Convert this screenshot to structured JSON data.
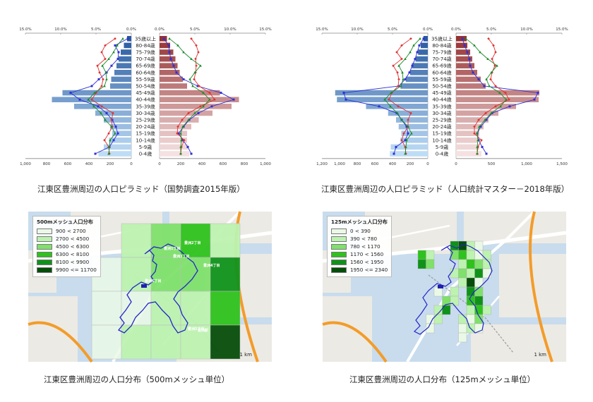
{
  "age_labels": [
    "35歳以上",
    "80-84歳",
    "75-79歳",
    "70-74歳",
    "65-69歳",
    "60-64歳",
    "55-59歳",
    "50-54歳",
    "45-49歳",
    "40-44歳",
    "35-39歳",
    "30-34歳",
    "25-29歳",
    "20-24歳",
    "15-19歳",
    "10-14歳",
    "5-9歳",
    "0-4歳"
  ],
  "chart_data": [
    {
      "type": "bar",
      "caption": "江東区豊洲周辺の人口ピラミッド（国勢調査2015年版）",
      "categories": [
        "35歳以上",
        "80-84歳",
        "75-79歳",
        "70-74歳",
        "65-69歳",
        "60-64歳",
        "55-59歳",
        "50-54歳",
        "45-49歳",
        "40-44歳",
        "35-39歳",
        "30-34歳",
        "25-29歳",
        "20-24歳",
        "15-19歳",
        "10-14歳",
        "5-9歳",
        "0-4歳"
      ],
      "left_count_ticks": [
        "1,000",
        "800",
        "600",
        "400",
        "200",
        "0"
      ],
      "right_count_ticks": [
        "0",
        "200",
        "400",
        "600",
        "800",
        "1,000"
      ],
      "count_max": 1000,
      "left_pct_ticks": [
        "15.0%",
        "10.0%",
        "5.0%",
        "0.0%"
      ],
      "right_pct_ticks": [
        "0.0%",
        "5.0%",
        "10.0%",
        "15.0%"
      ],
      "pct_max": 15,
      "series": [
        {
          "side": "left",
          "kind": "bars",
          "values": [
            40,
            70,
            100,
            120,
            140,
            160,
            190,
            200,
            650,
            750,
            540,
            340,
            260,
            200,
            180,
            210,
            260,
            310
          ]
        },
        {
          "side": "right",
          "kind": "bars",
          "values": [
            70,
            100,
            130,
            150,
            170,
            190,
            220,
            260,
            570,
            750,
            680,
            500,
            370,
            300,
            260,
            260,
            270,
            280
          ]
        },
        {
          "side": "left",
          "kind": "line",
          "color": "#2f2fd6",
          "values": [
            0.5,
            2.3,
            1.8,
            1.9,
            2.8,
            3.5,
            4.6,
            5.6,
            8.6,
            7.3,
            4.7,
            3.5,
            2.7,
            2.2,
            1.9,
            2.5,
            3.1,
            5.1
          ]
        },
        {
          "side": "left",
          "kind": "line",
          "color": "#e03030",
          "values": [
            2.3,
            3.7,
            4.2,
            3.7,
            4.8,
            4.5,
            4.0,
            4.2,
            5.0,
            5.6,
            4.2,
            2.6,
            2.8,
            2.7,
            3.2,
            3.8,
            3.2,
            3.1
          ]
        },
        {
          "side": "left",
          "kind": "line",
          "color": "#1a8a2a",
          "values": [
            1.2,
            2.0,
            2.5,
            3.2,
            4.1,
            3.6,
            3.5,
            3.8,
            5.2,
            6.1,
            5.3,
            4.3,
            3.7,
            2.8,
            2.3,
            3.0,
            3.1,
            3.2
          ]
        },
        {
          "side": "right",
          "kind": "line",
          "color": "#2f2fd6",
          "values": [
            0.6,
            1.3,
            1.4,
            1.6,
            2.0,
            2.4,
            3.4,
            5.4,
            8.7,
            10.5,
            7.4,
            5.5,
            4.2,
            3.4,
            2.7,
            3.3,
            4.0,
            4.5
          ]
        },
        {
          "side": "right",
          "kind": "line",
          "color": "#e03030",
          "values": [
            4.5,
            5.2,
            5.5,
            5.1,
            5.2,
            5.1,
            4.9,
            5.6,
            7.1,
            7.8,
            5.8,
            4.1,
            3.2,
            2.6,
            2.5,
            3.5,
            3.1,
            3.0
          ]
        },
        {
          "side": "right",
          "kind": "line",
          "color": "#1a8a2a",
          "values": [
            1.4,
            2.6,
            3.4,
            4.5,
            5.8,
            5.0,
            4.3,
            4.7,
            6.2,
            7.1,
            6.2,
            5.0,
            4.1,
            3.3,
            3.0,
            3.1,
            3.0,
            3.0
          ]
        }
      ]
    },
    {
      "type": "bar",
      "caption": "江東区豊洲周辺の人口ピラミッド（人口統計マスター－2018年版）",
      "categories": [
        "35歳以上",
        "80-84歳",
        "75-79歳",
        "70-74歳",
        "65-69歳",
        "60-64歳",
        "55-59歳",
        "50-54歳",
        "45-49歳",
        "40-44歳",
        "35-39歳",
        "30-34歳",
        "25-29歳",
        "20-24歳",
        "15-19歳",
        "10-14歳",
        "5-9歳",
        "0-4歳"
      ],
      "left_count_ticks": [
        "1,200",
        "1,000",
        "800",
        "600",
        "400",
        "200",
        "0"
      ],
      "right_count_ticks": [
        "0",
        "500",
        "1,000",
        "1,500"
      ],
      "count_max_left": 1200,
      "count_max_right": 1500,
      "left_pct_ticks": [
        "15.0%",
        "10.0%",
        "5.0%",
        "0.0%"
      ],
      "right_pct_ticks": [
        "0.0%",
        "5.0%",
        "10.0%",
        "15.0%"
      ],
      "pct_max": 15,
      "series": [
        {
          "side": "left",
          "kind": "bars",
          "values": [
            50,
            80,
            110,
            140,
            180,
            200,
            250,
            310,
            1050,
            1030,
            700,
            450,
            360,
            330,
            300,
            310,
            420,
            430
          ]
        },
        {
          "side": "right",
          "kind": "bars",
          "values": [
            150,
            160,
            200,
            230,
            260,
            300,
            350,
            420,
            1180,
            1170,
            850,
            600,
            460,
            390,
            330,
            300,
            330,
            360
          ]
        },
        {
          "side": "left",
          "kind": "line",
          "color": "#2f2fd6",
          "values": [
            0.6,
            1.2,
            1.5,
            1.8,
            2.2,
            2.6,
            3.2,
            4.1,
            11.9,
            11.6,
            6.9,
            4.4,
            3.7,
            3.0,
            2.8,
            3.2,
            4.5,
            4.8
          ]
        },
        {
          "side": "left",
          "kind": "line",
          "color": "#e03030",
          "values": [
            2.4,
            3.7,
            4.4,
            3.7,
            4.9,
            4.3,
            4.1,
            4.2,
            5.1,
            5.5,
            4.2,
            2.4,
            2.8,
            2.8,
            3.4,
            3.7,
            3.2,
            3.1
          ]
        },
        {
          "side": "left",
          "kind": "line",
          "color": "#1a8a2a",
          "values": [
            1.1,
            2.0,
            2.5,
            3.2,
            4.1,
            3.6,
            3.5,
            3.8,
            5.2,
            6.1,
            5.3,
            4.3,
            3.7,
            2.8,
            2.3,
            3.0,
            3.1,
            3.2
          ]
        },
        {
          "side": "right",
          "kind": "line",
          "color": "#2f2fd6",
          "values": [
            0.9,
            1.2,
            1.6,
            1.9,
            2.0,
            2.4,
            3.2,
            4.0,
            11.6,
            11.1,
            7.6,
            5.1,
            4.3,
            3.5,
            3.0,
            3.2,
            3.7,
            4.3
          ]
        },
        {
          "side": "right",
          "kind": "line",
          "color": "#e03030",
          "values": [
            4.6,
            5.3,
            5.6,
            5.1,
            5.5,
            5.1,
            4.9,
            5.6,
            7.0,
            7.5,
            5.6,
            4.2,
            3.2,
            2.6,
            2.6,
            3.6,
            3.1,
            3.0
          ]
        },
        {
          "side": "right",
          "kind": "line",
          "color": "#1a8a2a",
          "values": [
            1.4,
            2.6,
            3.4,
            4.5,
            5.8,
            5.0,
            4.3,
            4.7,
            6.2,
            7.1,
            6.3,
            5.0,
            4.1,
            3.3,
            3.0,
            3.1,
            3.0,
            3.0
          ]
        }
      ]
    },
    {
      "type": "heatmap",
      "caption": "江東区豊洲周辺の人口分布（500mメッシュ単位）",
      "legend_title": "500mメッシュ人口分布",
      "legend": [
        {
          "label": "900 < 2700",
          "color": "#eaf9e6"
        },
        {
          "label": "2700 < 4500",
          "color": "#bdf2b0"
        },
        {
          "label": "4500 < 6300",
          "color": "#7fe06a"
        },
        {
          "label": "6300 < 8100",
          "color": "#2ec21c"
        },
        {
          "label": "8100 < 9900",
          "color": "#10921a"
        },
        {
          "label": "9900 <= 11700",
          "color": "#064d0a"
        }
      ],
      "scale_label": "1 km",
      "place_labels": [
        "豊洲1丁目",
        "豊洲2丁目",
        "豊洲3丁目",
        "豊洲4丁目",
        "豊洲5丁目",
        "豊洲6丁目",
        "豊洲駅"
      ],
      "cells": [
        {
          "r": 0,
          "c": 1,
          "v": 2
        },
        {
          "r": 0,
          "c": 2,
          "v": 3
        },
        {
          "r": 0,
          "c": 3,
          "v": 4
        },
        {
          "r": 0,
          "c": 4,
          "v": 2
        },
        {
          "r": 1,
          "c": 0,
          "v": 1
        },
        {
          "r": 1,
          "c": 1,
          "v": 2
        },
        {
          "r": 1,
          "c": 2,
          "v": 3
        },
        {
          "r": 1,
          "c": 3,
          "v": 3
        },
        {
          "r": 1,
          "c": 4,
          "v": 5
        },
        {
          "r": 2,
          "c": 0,
          "v": 1
        },
        {
          "r": 2,
          "c": 1,
          "v": 1
        },
        {
          "r": 2,
          "c": 2,
          "v": 2
        },
        {
          "r": 2,
          "c": 3,
          "v": 2
        },
        {
          "r": 2,
          "c": 4,
          "v": 4
        },
        {
          "r": 3,
          "c": 0,
          "v": 1
        },
        {
          "r": 3,
          "c": 1,
          "v": 2
        },
        {
          "r": 3,
          "c": 2,
          "v": 2
        },
        {
          "r": 3,
          "c": 3,
          "v": 2
        },
        {
          "r": 3,
          "c": 4,
          "v": 6
        }
      ]
    },
    {
      "type": "heatmap",
      "caption": "江東区豊洲周辺の人口分布（125mメッシュ単位）",
      "legend_title": "125mメッシュ人口分布",
      "legend": [
        {
          "label": "0 < 390",
          "color": "#eaf9e6"
        },
        {
          "label": "390 < 780",
          "color": "#bdf2b0"
        },
        {
          "label": "780 < 1170",
          "color": "#7fe06a"
        },
        {
          "label": "1170 < 1560",
          "color": "#2ec21c"
        },
        {
          "label": "1560 < 1950",
          "color": "#10921a"
        },
        {
          "label": "1950 <= 2340",
          "color": "#064d0a"
        }
      ],
      "scale_label": "1 km",
      "cells": [
        {
          "r": 0,
          "c": 6,
          "v": 5
        },
        {
          "r": 0,
          "c": 7,
          "v": 6
        },
        {
          "r": 0,
          "c": 8,
          "v": 2
        },
        {
          "r": 0,
          "c": 9,
          "v": 1
        },
        {
          "r": 1,
          "c": 2,
          "v": 4
        },
        {
          "r": 1,
          "c": 3,
          "v": 2
        },
        {
          "r": 1,
          "c": 6,
          "v": 3
        },
        {
          "r": 1,
          "c": 7,
          "v": 4
        },
        {
          "r": 1,
          "c": 8,
          "v": 2
        },
        {
          "r": 1,
          "c": 9,
          "v": 1
        },
        {
          "r": 1,
          "c": 10,
          "v": 2
        },
        {
          "r": 2,
          "c": 2,
          "v": 5
        },
        {
          "r": 2,
          "c": 3,
          "v": 3
        },
        {
          "r": 2,
          "c": 7,
          "v": 2
        },
        {
          "r": 2,
          "c": 8,
          "v": 4
        },
        {
          "r": 2,
          "c": 9,
          "v": 3
        },
        {
          "r": 2,
          "c": 10,
          "v": 2
        },
        {
          "r": 3,
          "c": 6,
          "v": 2
        },
        {
          "r": 3,
          "c": 7,
          "v": 3
        },
        {
          "r": 3,
          "c": 8,
          "v": 2
        },
        {
          "r": 3,
          "c": 9,
          "v": 5
        },
        {
          "r": 3,
          "c": 10,
          "v": 1
        },
        {
          "r": 4,
          "c": 7,
          "v": 2
        },
        {
          "r": 4,
          "c": 8,
          "v": 6
        },
        {
          "r": 4,
          "c": 9,
          "v": 1
        },
        {
          "r": 5,
          "c": 4,
          "v": 1
        },
        {
          "r": 5,
          "c": 6,
          "v": 2
        },
        {
          "r": 5,
          "c": 8,
          "v": 5
        },
        {
          "r": 5,
          "c": 9,
          "v": 3
        },
        {
          "r": 6,
          "c": 5,
          "v": 3
        },
        {
          "r": 6,
          "c": 6,
          "v": 2
        },
        {
          "r": 6,
          "c": 8,
          "v": 4
        },
        {
          "r": 6,
          "c": 9,
          "v": 5
        },
        {
          "r": 7,
          "c": 4,
          "v": 2
        },
        {
          "r": 7,
          "c": 5,
          "v": 5
        },
        {
          "r": 7,
          "c": 8,
          "v": 2
        },
        {
          "r": 7,
          "c": 9,
          "v": 4
        },
        {
          "r": 7,
          "c": 10,
          "v": 2
        },
        {
          "r": 8,
          "c": 3,
          "v": 1
        },
        {
          "r": 8,
          "c": 4,
          "v": 2
        },
        {
          "r": 8,
          "c": 7,
          "v": 2
        },
        {
          "r": 8,
          "c": 8,
          "v": 1
        },
        {
          "r": 8,
          "c": 9,
          "v": 3
        },
        {
          "r": 9,
          "c": 3,
          "v": 1
        },
        {
          "r": 9,
          "c": 7,
          "v": 1
        },
        {
          "r": 9,
          "c": 8,
          "v": 2
        },
        {
          "r": 9,
          "c": 9,
          "v": 1
        },
        {
          "r": 10,
          "c": 7,
          "v": 1
        }
      ]
    }
  ]
}
